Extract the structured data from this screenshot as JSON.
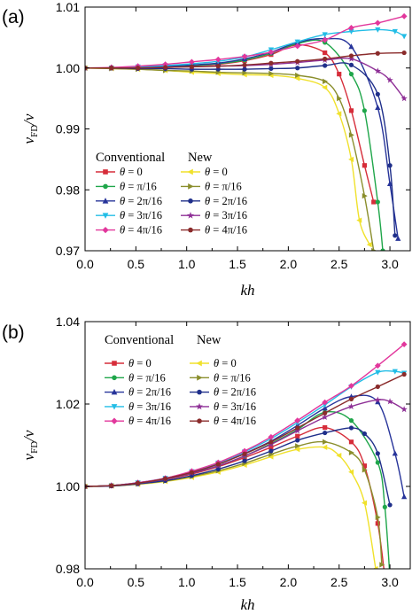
{
  "chart_data": [
    {
      "type": "line",
      "panel_label": "(a)",
      "xlabel": "kh",
      "ylabel": "v_FD/v",
      "xlim": [
        0,
        3.2
      ],
      "ylim": [
        0.97,
        1.01
      ],
      "xticks": [
        "0.0",
        "0.5",
        "1.0",
        "1.5",
        "2.0",
        "2.5",
        "3.0"
      ],
      "yticks": [
        "0.97",
        "0.98",
        "0.99",
        "1.00",
        "1.01"
      ],
      "grid": false,
      "legend_position": "bottom-left",
      "legend_headers": [
        "Conventional",
        "New"
      ],
      "series": [
        {
          "name": "θ = 0",
          "group": "Conventional",
          "color": "#d62d3a",
          "marker": "square",
          "x": [
            0,
            0.26,
            0.52,
            0.79,
            1.05,
            1.31,
            1.57,
            1.83,
            2.09,
            2.36,
            2.5,
            2.62,
            2.75,
            2.84
          ],
          "y": [
            1.0,
            1.0,
            1.0001,
            1.0002,
            1.0004,
            1.0006,
            1.0012,
            1.0022,
            1.0038,
            1.0025,
            0.999,
            0.993,
            0.984,
            0.978
          ]
        },
        {
          "name": "θ = π/16",
          "group": "Conventional",
          "color": "#1fa64a",
          "marker": "circle",
          "x": [
            0,
            0.26,
            0.52,
            0.79,
            1.05,
            1.31,
            1.57,
            1.83,
            2.09,
            2.36,
            2.62,
            2.75,
            2.88,
            2.93
          ],
          "y": [
            1.0,
            1.0,
            1.0001,
            1.0002,
            1.0004,
            1.0007,
            1.0013,
            1.0024,
            1.004,
            1.0042,
            0.999,
            0.993,
            0.978,
            0.97
          ]
        },
        {
          "name": "θ = 2π/16",
          "group": "Conventional",
          "color": "#27349a",
          "marker": "triangle-up",
          "x": [
            0,
            0.26,
            0.52,
            0.79,
            1.05,
            1.31,
            1.57,
            1.83,
            2.09,
            2.36,
            2.62,
            2.88,
            3.0,
            3.08
          ],
          "y": [
            1.0,
            1.0,
            1.0001,
            1.0003,
            1.0005,
            1.0008,
            1.0015,
            1.0026,
            1.0042,
            1.0048,
            1.0035,
            0.9935,
            0.981,
            0.972
          ]
        },
        {
          "name": "θ = 3π/16",
          "group": "Conventional",
          "color": "#22bde6",
          "marker": "triangle-down",
          "x": [
            0,
            0.26,
            0.52,
            0.79,
            1.05,
            1.31,
            1.57,
            1.83,
            2.09,
            2.36,
            2.62,
            2.88,
            3.05,
            3.14
          ],
          "y": [
            1.0,
            1.0,
            1.0002,
            1.0004,
            1.0007,
            1.0011,
            1.0018,
            1.003,
            1.0043,
            1.0055,
            1.006,
            1.0063,
            1.006,
            1.0052
          ]
        },
        {
          "name": "θ = 4π/16",
          "group": "Conventional",
          "color": "#e2379c",
          "marker": "diamond",
          "x": [
            0,
            0.26,
            0.52,
            0.79,
            1.05,
            1.31,
            1.57,
            1.83,
            2.09,
            2.36,
            2.62,
            2.88,
            3.14
          ],
          "y": [
            1.0,
            1.0001,
            1.0003,
            1.0006,
            1.001,
            1.0014,
            1.0019,
            1.0026,
            1.0036,
            1.0046,
            1.0066,
            1.0074,
            1.0085
          ]
        },
        {
          "name": "θ = 0",
          "group": "New",
          "color": "#f0e12b",
          "marker": "triangle-left",
          "x": [
            0,
            0.26,
            0.52,
            0.79,
            1.05,
            1.31,
            1.57,
            1.83,
            2.09,
            2.36,
            2.5,
            2.62,
            2.7,
            2.8
          ],
          "y": [
            1.0,
            0.9999,
            0.9998,
            0.9996,
            0.9993,
            0.9991,
            0.9989,
            0.9988,
            0.9983,
            0.9968,
            0.9925,
            0.985,
            0.975,
            0.971
          ]
        },
        {
          "name": "θ = π/16",
          "group": "New",
          "color": "#8a8e2c",
          "marker": "triangle-right",
          "x": [
            0,
            0.26,
            0.52,
            0.79,
            1.05,
            1.31,
            1.57,
            1.83,
            2.09,
            2.36,
            2.5,
            2.62,
            2.75,
            2.84
          ],
          "y": [
            1.0,
            0.9999,
            0.9998,
            0.9996,
            0.9995,
            0.9993,
            0.9992,
            0.9991,
            0.9988,
            0.9978,
            0.995,
            0.989,
            0.979,
            0.97
          ]
        },
        {
          "name": "θ = 2π/16",
          "group": "New",
          "color": "#1f2f8a",
          "marker": "circle",
          "x": [
            0,
            0.26,
            0.52,
            0.79,
            1.05,
            1.31,
            1.57,
            1.83,
            2.09,
            2.36,
            2.62,
            2.88,
            3.0,
            3.05
          ],
          "y": [
            1.0,
            1.0,
            0.9999,
            0.9999,
            0.9998,
            0.9998,
            0.9998,
            0.9999,
            1.0,
            1.0004,
            1.0005,
            0.9957,
            0.984,
            0.9725
          ]
        },
        {
          "name": "θ = 3π/16",
          "group": "New",
          "color": "#8e2f96",
          "marker": "star",
          "x": [
            0,
            0.26,
            0.52,
            0.79,
            1.05,
            1.31,
            1.57,
            1.83,
            2.09,
            2.36,
            2.62,
            2.88,
            3.0,
            3.14
          ],
          "y": [
            1.0,
            1.0,
            1.0,
            1.0001,
            1.0002,
            1.0003,
            1.0004,
            1.0006,
            1.0009,
            1.0013,
            1.0015,
            0.9995,
            0.998,
            0.995
          ]
        },
        {
          "name": "θ = 4π/16",
          "group": "New",
          "color": "#8a2b2b",
          "marker": "circle",
          "x": [
            0,
            0.26,
            0.52,
            0.79,
            1.05,
            1.31,
            1.57,
            1.83,
            2.09,
            2.36,
            2.62,
            2.88,
            3.14
          ],
          "y": [
            1.0,
            1.0,
            1.0,
            1.0001,
            1.0002,
            1.0003,
            1.0005,
            1.0008,
            1.0011,
            1.0015,
            1.002,
            1.0024,
            1.0025
          ]
        }
      ]
    },
    {
      "type": "line",
      "panel_label": "(b)",
      "xlabel": "kh",
      "ylabel": "v_FD/v",
      "xlim": [
        0,
        3.2
      ],
      "ylim": [
        0.98,
        1.04
      ],
      "xticks": [
        "0.0",
        "0.5",
        "1.0",
        "1.5",
        "2.0",
        "2.5",
        "3.0"
      ],
      "yticks": [
        "0.98",
        "1.00",
        "1.02",
        "1.04"
      ],
      "grid": false,
      "legend_position": "top-left",
      "legend_headers": [
        "Conventional",
        "New"
      ],
      "series": [
        {
          "name": "θ = 0",
          "group": "Conventional",
          "color": "#d62d3a",
          "marker": "square",
          "x": [
            0,
            0.26,
            0.52,
            0.79,
            1.05,
            1.31,
            1.57,
            1.83,
            2.09,
            2.36,
            2.62,
            2.75,
            2.88,
            2.95
          ],
          "y": [
            1.0,
            1.0002,
            1.0008,
            1.0017,
            1.003,
            1.0048,
            1.007,
            1.0095,
            1.0122,
            1.0143,
            1.0108,
            1.005,
            0.991,
            0.978
          ]
        },
        {
          "name": "θ = π/16",
          "group": "Conventional",
          "color": "#1fa64a",
          "marker": "circle",
          "x": [
            0,
            0.26,
            0.52,
            0.79,
            1.05,
            1.31,
            1.57,
            1.83,
            2.09,
            2.36,
            2.62,
            2.88,
            2.95,
            3.0
          ],
          "y": [
            1.0,
            1.0002,
            1.0008,
            1.0018,
            1.0032,
            1.005,
            1.0074,
            1.0104,
            1.0138,
            1.018,
            1.016,
            1.0058,
            0.995,
            0.978
          ]
        },
        {
          "name": "θ = 2π/16",
          "group": "Conventional",
          "color": "#27349a",
          "marker": "triangle-up",
          "x": [
            0,
            0.26,
            0.52,
            0.79,
            1.05,
            1.31,
            1.57,
            1.83,
            2.09,
            2.36,
            2.62,
            2.88,
            3.05,
            3.14
          ],
          "y": [
            1.0,
            1.0002,
            1.0009,
            1.0019,
            1.0034,
            1.0054,
            1.008,
            1.011,
            1.0148,
            1.019,
            1.0218,
            1.0205,
            1.008,
            0.9975
          ]
        },
        {
          "name": "θ = 3π/16",
          "group": "Conventional",
          "color": "#22bde6",
          "marker": "triangle-down",
          "x": [
            0,
            0.26,
            0.52,
            0.79,
            1.05,
            1.31,
            1.57,
            1.83,
            2.09,
            2.36,
            2.62,
            2.88,
            3.05,
            3.14
          ],
          "y": [
            1.0,
            1.0002,
            1.0009,
            1.002,
            1.0036,
            1.0057,
            1.0084,
            1.0116,
            1.0155,
            1.0198,
            1.0242,
            1.0277,
            1.0279,
            1.0275
          ]
        },
        {
          "name": "θ = 4π/16",
          "group": "Conventional",
          "color": "#e2379c",
          "marker": "diamond",
          "x": [
            0,
            0.26,
            0.52,
            0.79,
            1.05,
            1.31,
            1.57,
            1.83,
            2.09,
            2.36,
            2.62,
            2.88,
            3.14
          ],
          "y": [
            1.0,
            1.0002,
            1.0009,
            1.002,
            1.0037,
            1.0058,
            1.0086,
            1.012,
            1.016,
            1.0204,
            1.0244,
            1.0293,
            1.0345
          ]
        },
        {
          "name": "θ = 0",
          "group": "New",
          "color": "#f0e12b",
          "marker": "triangle-left",
          "x": [
            0,
            0.26,
            0.52,
            0.79,
            1.05,
            1.31,
            1.57,
            1.83,
            2.09,
            2.36,
            2.5,
            2.62,
            2.75,
            2.86
          ],
          "y": [
            1.0,
            1.0001,
            1.0005,
            1.0012,
            1.0022,
            1.0035,
            1.0052,
            1.0072,
            1.009,
            1.0095,
            1.0075,
            1.0035,
            0.996,
            0.98
          ]
        },
        {
          "name": "θ = π/16",
          "group": "New",
          "color": "#8a8e2c",
          "marker": "triangle-right",
          "x": [
            0,
            0.26,
            0.52,
            0.79,
            1.05,
            1.31,
            1.57,
            1.83,
            2.09,
            2.36,
            2.62,
            2.75,
            2.88,
            2.92
          ],
          "y": [
            1.0,
            1.0001,
            1.0006,
            1.0013,
            1.0024,
            1.0038,
            1.0056,
            1.0078,
            1.0098,
            1.0108,
            1.0082,
            1.004,
            0.9925,
            0.981
          ]
        },
        {
          "name": "θ = 2π/16",
          "group": "New",
          "color": "#1f2f8a",
          "marker": "circle",
          "x": [
            0,
            0.26,
            0.52,
            0.79,
            1.05,
            1.31,
            1.57,
            1.83,
            2.09,
            2.36,
            2.62,
            2.75,
            2.88,
            3.0
          ],
          "y": [
            1.0,
            1.0001,
            1.0006,
            1.0014,
            1.0026,
            1.0042,
            1.0062,
            1.0086,
            1.0112,
            1.013,
            1.0142,
            1.0128,
            1.008,
            0.9955
          ]
        },
        {
          "name": "θ = 3π/16",
          "group": "New",
          "color": "#8e2f96",
          "marker": "star",
          "x": [
            0,
            0.26,
            0.52,
            0.79,
            1.05,
            1.31,
            1.57,
            1.83,
            2.09,
            2.36,
            2.62,
            2.88,
            3.0,
            3.14
          ],
          "y": [
            1.0,
            1.0002,
            1.0008,
            1.0018,
            1.0032,
            1.005,
            1.0074,
            1.0102,
            1.0135,
            1.0168,
            1.0194,
            1.021,
            1.0206,
            1.0187
          ]
        },
        {
          "name": "θ = 4π/16",
          "group": "New",
          "color": "#8a2b2b",
          "marker": "circle",
          "x": [
            0,
            0.26,
            0.52,
            0.79,
            1.05,
            1.31,
            1.57,
            1.83,
            2.09,
            2.36,
            2.62,
            2.88,
            3.14
          ],
          "y": [
            1.0,
            1.0002,
            1.0008,
            1.0019,
            1.0034,
            1.0054,
            1.0079,
            1.0108,
            1.0142,
            1.0178,
            1.0212,
            1.0242,
            1.0272
          ]
        }
      ]
    }
  ]
}
